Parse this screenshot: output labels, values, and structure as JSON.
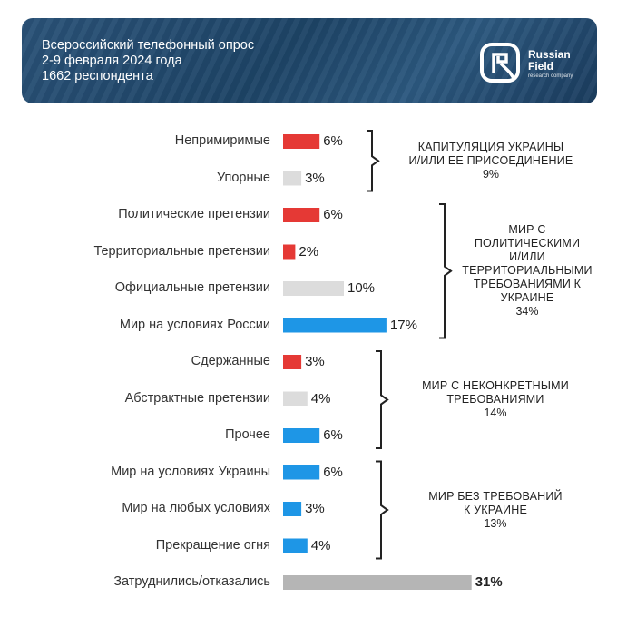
{
  "header": {
    "lines": [
      "Всероссийский телефонный опрос",
      "2-9 февраля 2024 года",
      "1662 респондента"
    ],
    "logo": {
      "word1": "Russian",
      "word2": "Field",
      "sub": "research company"
    }
  },
  "colors": {
    "red": "#e53935",
    "light_gray": "#dcdcdc",
    "blue": "#1e96e6",
    "dark_gray": "#b5b5b5",
    "header_bg": "#214a6e"
  },
  "chart_data": {
    "type": "bar",
    "orientation": "horizontal",
    "unit": "%",
    "xlim": [
      0,
      31
    ],
    "categories": [
      "Непримиримые",
      "Упорные",
      "Политические претензии",
      "Территориальные претензии",
      "Официальные претензии",
      "Мир на условиях России",
      "Сдержанные",
      "Абстрактные претензии",
      "Прочее",
      "Мир на условиях Украины",
      "Мир на любых условиях",
      "Прекращение огня",
      "Затруднились/отказались"
    ],
    "values": [
      6,
      3,
      6,
      2,
      10,
      17,
      3,
      4,
      6,
      6,
      3,
      4,
      31
    ],
    "value_labels": [
      "6%",
      "3%",
      "6%",
      "2%",
      "10%",
      "17%",
      "3%",
      "4%",
      "6%",
      "6%",
      "3%",
      "4%",
      "31%"
    ],
    "bar_colors": [
      "red",
      "light_gray",
      "red",
      "red",
      "light_gray",
      "blue",
      "red",
      "light_gray",
      "blue",
      "blue",
      "blue",
      "blue",
      "dark_gray"
    ],
    "groups": [
      {
        "label_lines": [
          "КАПИТУЛЯЦИЯ УКРАИНЫ",
          "И/ИЛИ ЕЕ ПРИСОЕДИНЕНИЕ"
        ],
        "value": "9%",
        "from": 0,
        "to": 1
      },
      {
        "label_lines": [
          "МИР С",
          "ПОЛИТИЧЕСКИМИ",
          "И/ИЛИ",
          "ТЕРРИТОРИАЛЬНЫМИ",
          "ТРЕБОВАНИЯМИ К",
          "УКРАИНЕ"
        ],
        "value": "34%",
        "from": 2,
        "to": 5
      },
      {
        "label_lines": [
          "МИР С НЕКОНКРЕТНЫМИ",
          "ТРЕБОВАНИЯМИ"
        ],
        "value": "14%",
        "from": 6,
        "to": 8
      },
      {
        "label_lines": [
          "МИР БЕЗ ТРЕБОВАНИЙ",
          "К УКРАИНЕ"
        ],
        "value": "13%",
        "from": 9,
        "to": 11
      }
    ]
  }
}
